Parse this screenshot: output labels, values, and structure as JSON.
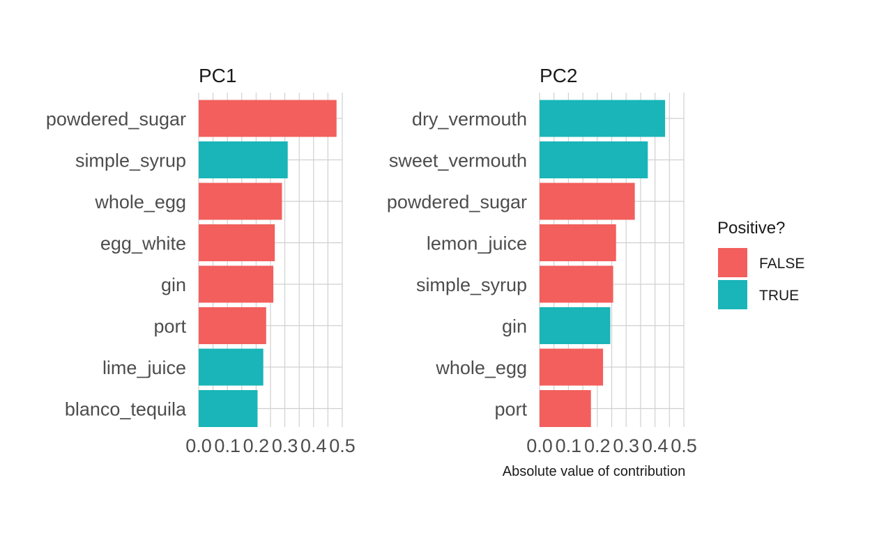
{
  "colors": {
    "FALSE": "#F25F5C",
    "TRUE": "#19B5B8"
  },
  "chart_data": {
    "type": "bar",
    "orientation": "horizontal",
    "grid": true,
    "xlim": [
      0,
      0.5
    ],
    "x_ticks": [
      "0.0",
      "0.1",
      "0.2",
      "0.3",
      "0.4",
      "0.5"
    ],
    "xlabel": "Absolute value of contribution",
    "legend": {
      "title": "Positive?",
      "placement": "right",
      "entries": [
        {
          "label": "FALSE",
          "key": "FALSE"
        },
        {
          "label": "TRUE",
          "key": "TRUE"
        }
      ]
    },
    "panels": [
      {
        "title": "PC1",
        "categories": [
          "powdered_sugar",
          "simple_syrup",
          "whole_egg",
          "egg_white",
          "gin",
          "port",
          "lime_juice",
          "blanco_tequila"
        ],
        "values": [
          0.48,
          0.31,
          0.29,
          0.265,
          0.26,
          0.235,
          0.225,
          0.205
        ],
        "positive": [
          false,
          true,
          false,
          false,
          false,
          false,
          true,
          true
        ]
      },
      {
        "title": "PC2",
        "categories": [
          "dry_vermouth",
          "sweet_vermouth",
          "powdered_sugar",
          "lemon_juice",
          "simple_syrup",
          "gin",
          "whole_egg",
          "port"
        ],
        "values": [
          0.435,
          0.375,
          0.33,
          0.265,
          0.255,
          0.245,
          0.22,
          0.178
        ],
        "positive": [
          true,
          true,
          false,
          false,
          false,
          true,
          false,
          false
        ]
      }
    ]
  }
}
